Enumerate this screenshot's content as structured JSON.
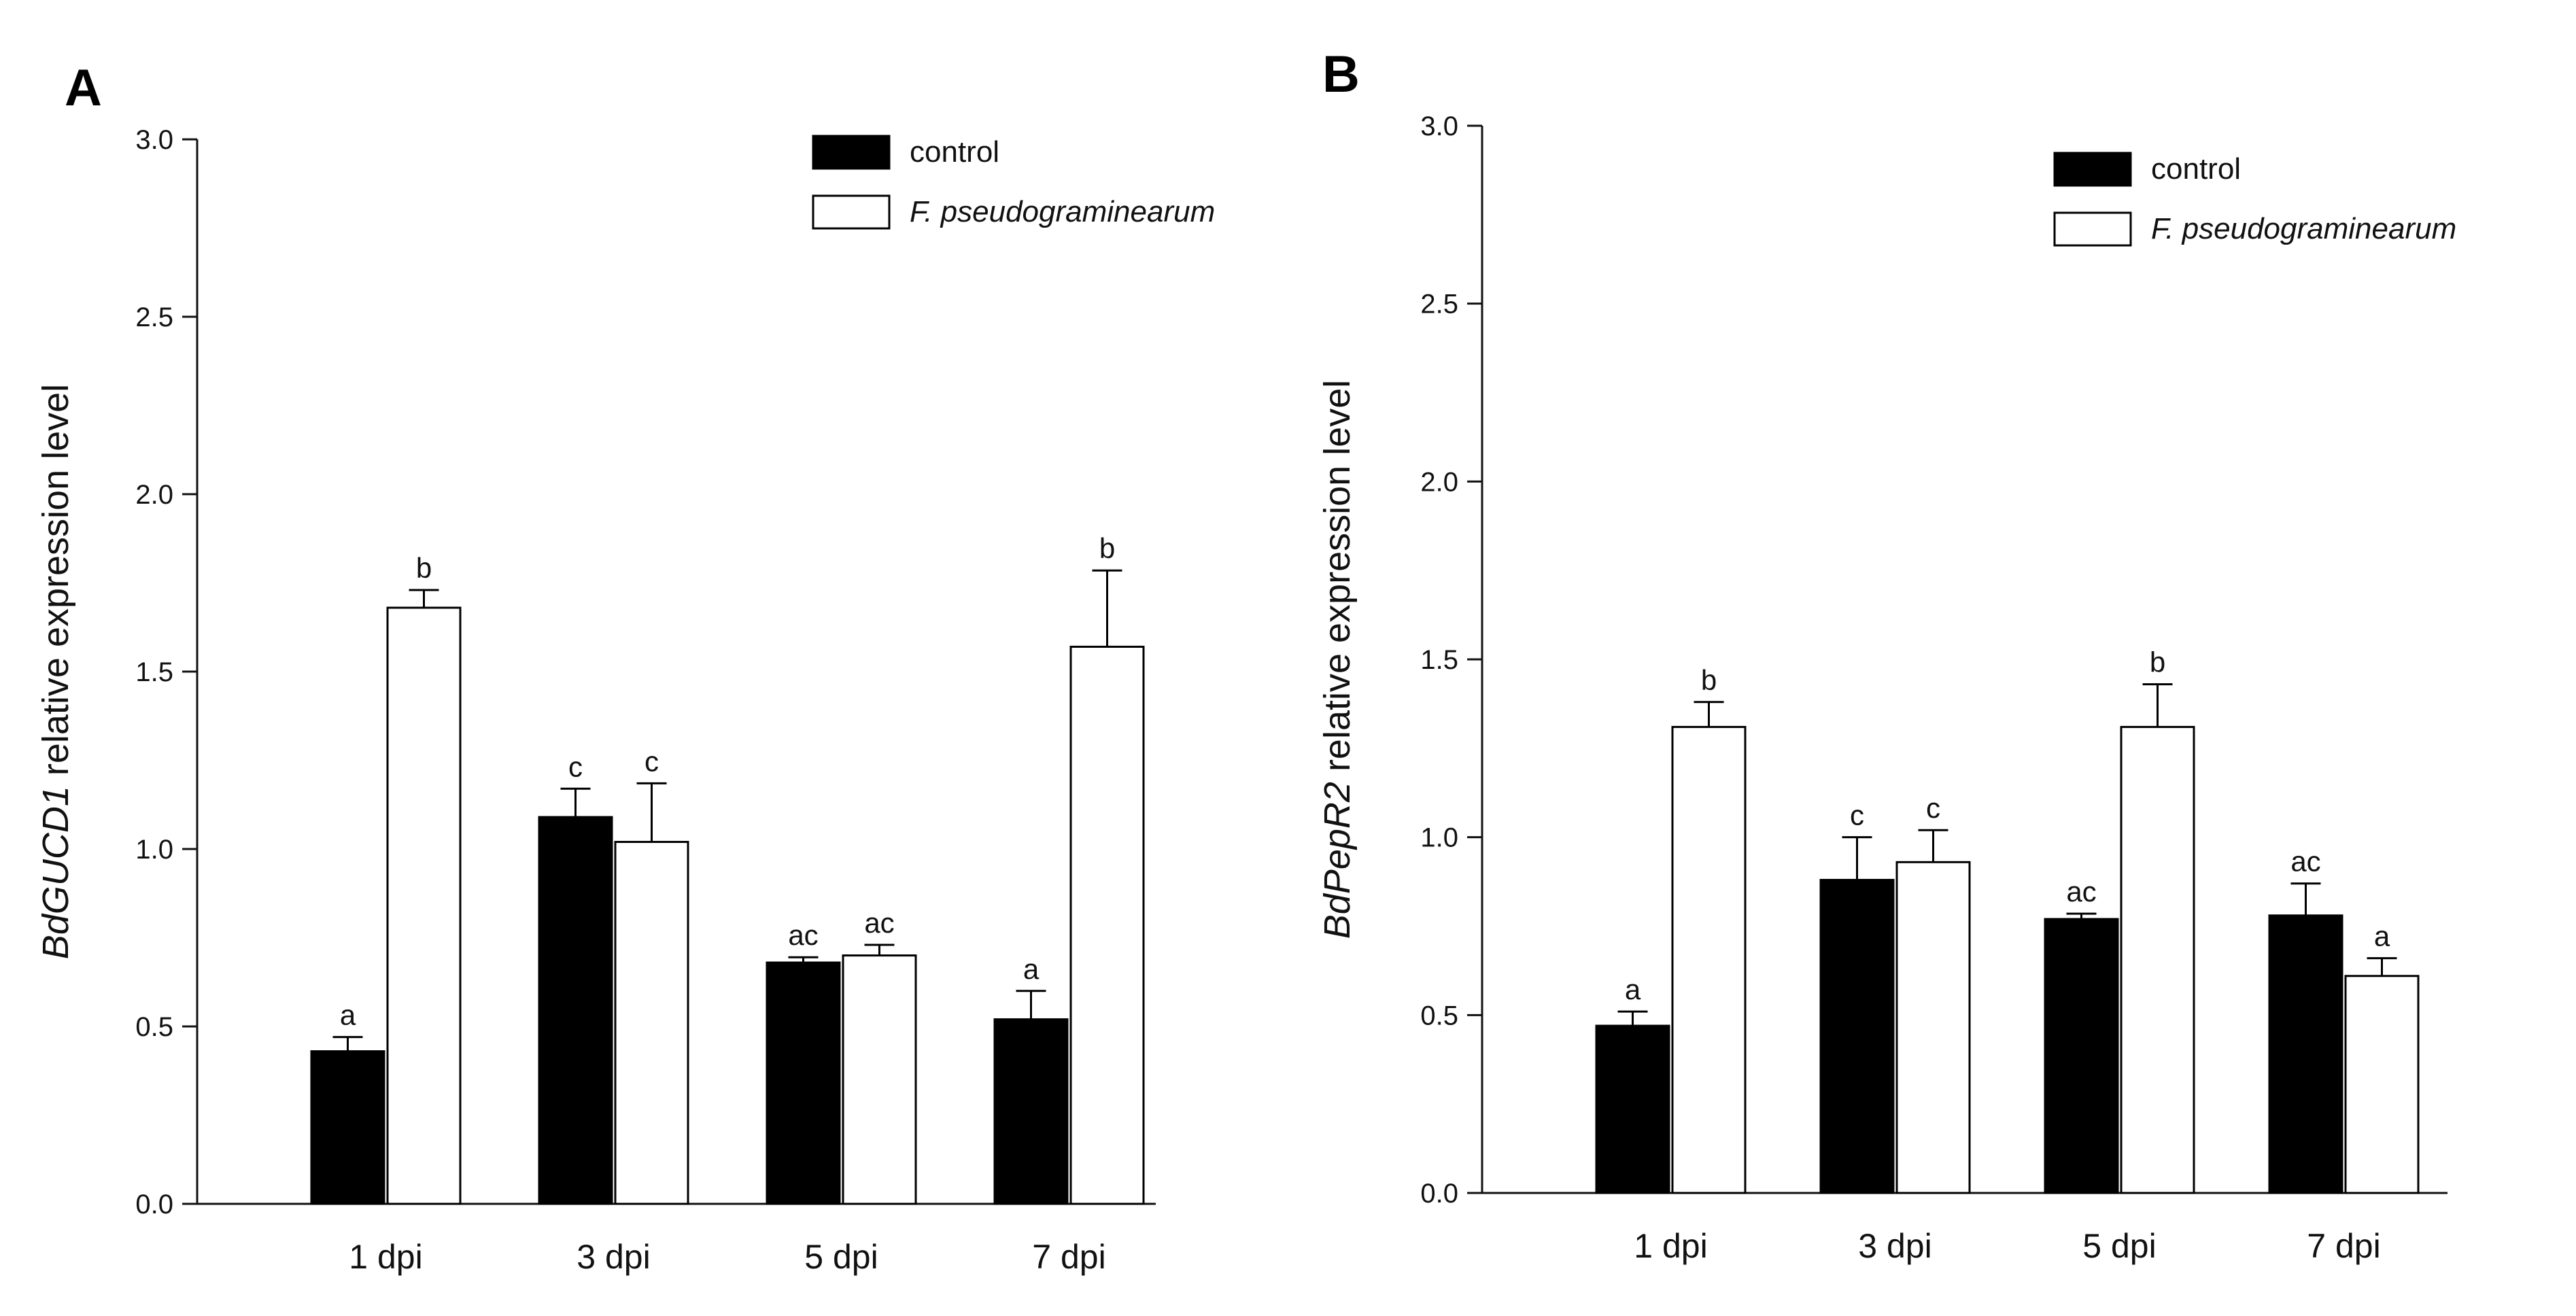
{
  "chart_data": [
    {
      "panel": "A",
      "type": "bar",
      "ylabel_gene": "BdGUCD1",
      "ylabel_rest": " relative expression level",
      "categories": [
        "1 dpi",
        "3 dpi",
        "5 dpi",
        "7 dpi"
      ],
      "ylim": [
        0,
        3.0
      ],
      "yticks": [
        "0.0",
        "0.5",
        "1.0",
        "1.5",
        "2.0",
        "2.5",
        "3.0"
      ],
      "legend": {
        "position": "top-right",
        "entries": [
          "control",
          "F. pseudograminearum"
        ]
      },
      "series": [
        {
          "name": "control",
          "values": [
            0.43,
            1.09,
            0.68,
            0.52
          ],
          "errors": [
            0.04,
            0.08,
            0.015,
            0.08
          ],
          "labels": [
            "a",
            "c",
            "ac",
            "a"
          ]
        },
        {
          "name": "F. pseudograminearum",
          "values": [
            1.68,
            1.02,
            0.7,
            1.57
          ],
          "errors": [
            0.05,
            0.165,
            0.03,
            0.215
          ],
          "labels": [
            "b",
            "c",
            "ac",
            "b"
          ]
        }
      ]
    },
    {
      "panel": "B",
      "type": "bar",
      "ylabel_gene": "BdPepR2",
      "ylabel_rest": " relative expression level",
      "categories": [
        "1 dpi",
        "3 dpi",
        "5 dpi",
        "7 dpi"
      ],
      "ylim": [
        0,
        3.0
      ],
      "yticks": [
        "0.0",
        "0.5",
        "1.0",
        "1.5",
        "2.0",
        "2.5",
        "3.0"
      ],
      "legend": {
        "position": "top-right",
        "entries": [
          "control",
          "F. pseudograminearum"
        ]
      },
      "series": [
        {
          "name": "control",
          "values": [
            0.47,
            0.88,
            0.77,
            0.78
          ],
          "errors": [
            0.04,
            0.12,
            0.015,
            0.09
          ],
          "labels": [
            "a",
            "c",
            "ac",
            "ac"
          ]
        },
        {
          "name": "F. pseudograminearum",
          "values": [
            1.31,
            0.93,
            1.31,
            0.61
          ],
          "errors": [
            0.07,
            0.09,
            0.12,
            0.05
          ],
          "labels": [
            "b",
            "c",
            "b",
            "a"
          ]
        }
      ]
    }
  ]
}
